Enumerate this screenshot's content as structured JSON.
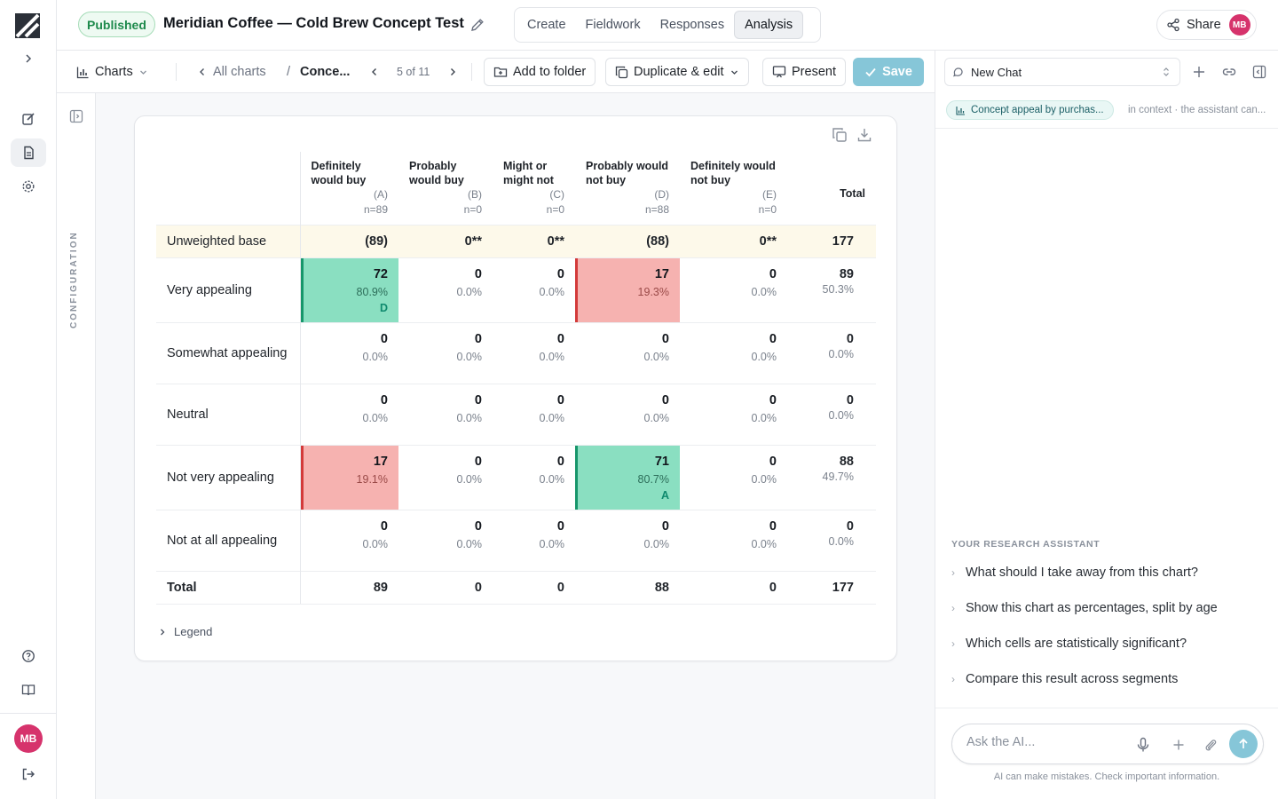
{
  "topbar": {
    "status_badge": "Published",
    "title": "Meridian Coffee — Cold Brew Concept Test",
    "tabs": [
      {
        "label": "Create",
        "active": false
      },
      {
        "label": "Fieldwork",
        "active": false
      },
      {
        "label": "Responses",
        "active": false
      },
      {
        "label": "Analysis",
        "active": true
      }
    ],
    "share_label": "Share",
    "avatar_initials": "MB"
  },
  "toolbar": {
    "charts_label": "Charts",
    "all_charts_label": "All charts",
    "breadcrumb_current": "Conce...",
    "pager": "5 of 11",
    "add_to_folder": "Add to folder",
    "duplicate_edit": "Duplicate & edit",
    "present": "Present",
    "save": "Save"
  },
  "config": {
    "label": "CONFIGURATION"
  },
  "table": {
    "columns": [
      {
        "label": "Definitely would buy",
        "letter": "(A)",
        "n": "n=89"
      },
      {
        "label": "Probably would buy",
        "letter": "(B)",
        "n": "n=0"
      },
      {
        "label": "Might or might not",
        "letter": "(C)",
        "n": "n=0"
      },
      {
        "label": "Probably would not buy",
        "letter": "(D)",
        "n": "n=88"
      },
      {
        "label": "Definitely would not buy",
        "letter": "(E)",
        "n": "n=0"
      }
    ],
    "total_header": "Total",
    "base_row": {
      "label": "Unweighted base",
      "values": [
        "(89)",
        "0**",
        "0**",
        "(88)",
        "0**"
      ],
      "total": "177"
    },
    "rows": [
      {
        "label": "Very appealing",
        "cells": [
          {
            "count": "72",
            "pct": "80.9%",
            "sig": "D",
            "highlight": "pos"
          },
          {
            "count": "0",
            "pct": "0.0%"
          },
          {
            "count": "0",
            "pct": "0.0%"
          },
          {
            "count": "17",
            "pct": "19.3%",
            "highlight": "neg"
          },
          {
            "count": "0",
            "pct": "0.0%"
          }
        ],
        "total": {
          "count": "89",
          "pct": "50.3%"
        }
      },
      {
        "label": "Somewhat appealing",
        "cells": [
          {
            "count": "0",
            "pct": "0.0%"
          },
          {
            "count": "0",
            "pct": "0.0%"
          },
          {
            "count": "0",
            "pct": "0.0%"
          },
          {
            "count": "0",
            "pct": "0.0%"
          },
          {
            "count": "0",
            "pct": "0.0%"
          }
        ],
        "total": {
          "count": "0",
          "pct": "0.0%"
        }
      },
      {
        "label": "Neutral",
        "cells": [
          {
            "count": "0",
            "pct": "0.0%"
          },
          {
            "count": "0",
            "pct": "0.0%"
          },
          {
            "count": "0",
            "pct": "0.0%"
          },
          {
            "count": "0",
            "pct": "0.0%"
          },
          {
            "count": "0",
            "pct": "0.0%"
          }
        ],
        "total": {
          "count": "0",
          "pct": "0.0%"
        }
      },
      {
        "label": "Not very appealing",
        "cells": [
          {
            "count": "17",
            "pct": "19.1%",
            "highlight": "neg"
          },
          {
            "count": "0",
            "pct": "0.0%"
          },
          {
            "count": "0",
            "pct": "0.0%"
          },
          {
            "count": "71",
            "pct": "80.7%",
            "sig": "A",
            "highlight": "pos"
          },
          {
            "count": "0",
            "pct": "0.0%"
          }
        ],
        "total": {
          "count": "88",
          "pct": "49.7%"
        }
      },
      {
        "label": "Not at all appealing",
        "cells": [
          {
            "count": "0",
            "pct": "0.0%"
          },
          {
            "count": "0",
            "pct": "0.0%"
          },
          {
            "count": "0",
            "pct": "0.0%"
          },
          {
            "count": "0",
            "pct": "0.0%"
          },
          {
            "count": "0",
            "pct": "0.0%"
          }
        ],
        "total": {
          "count": "0",
          "pct": "0.0%"
        }
      }
    ],
    "total_row": {
      "label": "Total",
      "values": [
        "89",
        "0",
        "0",
        "88",
        "0"
      ],
      "total": "177"
    },
    "legend_label": "Legend"
  },
  "chat": {
    "selector_label": "New Chat",
    "context_pill": "Concept appeal by purchas...",
    "context_note": "in context · the assistant can...",
    "assistant_heading": "YOUR RESEARCH ASSISTANT",
    "suggestions": [
      "What should I take away from this chart?",
      "Show this chart as percentages, split by age",
      "Which cells are statistically significant?",
      "Compare this result across segments"
    ],
    "input_placeholder": "Ask the AI...",
    "disclaimer": "AI can make mistakes. Check important information."
  },
  "rail": {
    "avatar_initials": "MB"
  },
  "colors": {
    "significant_positive": "#8adfc1",
    "significant_negative": "#f6b2b0",
    "accent": "#86c6d8",
    "published": "#1e8a4c"
  }
}
